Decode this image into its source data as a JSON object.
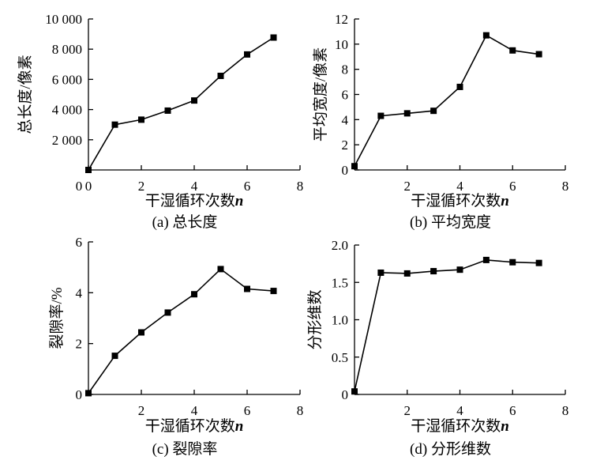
{
  "chart_data": [
    {
      "type": "line",
      "caption": "(a) 总长度",
      "xlabel": "干湿循环次数",
      "xlabel_var": "n",
      "ylabel": "总长度/像素",
      "xlim": [
        0,
        8
      ],
      "ylim": [
        0,
        10000
      ],
      "xticks": [
        0,
        2,
        4,
        6,
        8
      ],
      "yticks": [
        2000,
        4000,
        6000,
        8000,
        10000
      ],
      "ytick_labels": [
        "2 000",
        "4 000",
        "6 000",
        "8 000",
        "10 000"
      ],
      "show_origin_label": true,
      "x": [
        0,
        1,
        2,
        3,
        4,
        5,
        6,
        7
      ],
      "values": [
        0,
        3000,
        3330,
        3930,
        4600,
        6230,
        7650,
        8770
      ]
    },
    {
      "type": "line",
      "caption": "(b) 平均宽度",
      "xlabel": "干湿循环次数",
      "xlabel_var": "n",
      "ylabel": "平均宽度/像素",
      "xlim": [
        0,
        8
      ],
      "ylim": [
        0,
        12
      ],
      "xticks": [
        2,
        4,
        6,
        8
      ],
      "yticks": [
        0,
        2,
        4,
        6,
        8,
        10,
        12
      ],
      "ytick_labels": [
        "0",
        "2",
        "4",
        "6",
        "8",
        "10",
        "12"
      ],
      "show_origin_label": false,
      "x": [
        0,
        1,
        2,
        3,
        4,
        5,
        6,
        7
      ],
      "values": [
        0.3,
        4.3,
        4.5,
        4.7,
        6.6,
        10.7,
        9.5,
        9.2
      ]
    },
    {
      "type": "line",
      "caption": "(c) 裂隙率",
      "xlabel": "干湿循环次数",
      "xlabel_var": "n",
      "ylabel": "裂隙率/%",
      "xlim": [
        0,
        8
      ],
      "ylim": [
        0,
        6
      ],
      "xticks": [
        2,
        4,
        6,
        8
      ],
      "yticks": [
        0,
        2,
        4,
        6
      ],
      "ytick_labels": [
        "0",
        "2",
        "4",
        "6"
      ],
      "show_origin_label": false,
      "x": [
        0,
        1,
        2,
        3,
        4,
        5,
        6,
        7
      ],
      "values": [
        0.05,
        1.52,
        2.44,
        3.22,
        3.94,
        4.93,
        4.15,
        4.07
      ]
    },
    {
      "type": "line",
      "caption": "(d) 分形维数",
      "xlabel": "干湿循环次数",
      "xlabel_var": "n",
      "ylabel": "分形维数",
      "xlim": [
        0,
        8
      ],
      "ylim": [
        0,
        2.0
      ],
      "xticks": [
        2,
        4,
        6,
        8
      ],
      "yticks": [
        0,
        0.5,
        1.0,
        1.5,
        2.0
      ],
      "ytick_labels": [
        "0",
        "0.5",
        "1.0",
        "1.5",
        "2.0"
      ],
      "show_origin_label": false,
      "x": [
        0,
        1,
        2,
        3,
        4,
        5,
        6,
        7
      ],
      "values": [
        0.04,
        1.63,
        1.62,
        1.65,
        1.67,
        1.8,
        1.77,
        1.76
      ]
    }
  ]
}
